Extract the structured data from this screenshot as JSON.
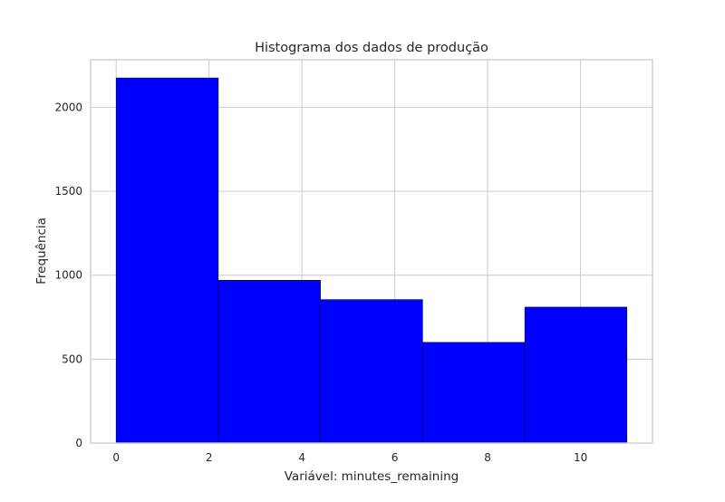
{
  "chart_data": {
    "type": "bar",
    "title": "Histograma dos dados de produção",
    "xlabel": "Variável: minutes_remaining",
    "ylabel": "Frequência",
    "bins": [
      {
        "start": 0.0,
        "end": 2.2,
        "count": 2175
      },
      {
        "start": 2.2,
        "end": 4.4,
        "count": 970
      },
      {
        "start": 4.4,
        "end": 6.6,
        "count": 855
      },
      {
        "start": 6.6,
        "end": 8.8,
        "count": 600
      },
      {
        "start": 8.8,
        "end": 11.0,
        "count": 810
      }
    ],
    "values": [
      2175,
      970,
      855,
      600,
      810
    ],
    "xlim": [
      -0.55,
      11.55
    ],
    "ylim": [
      0,
      2283
    ],
    "xticks": [
      0,
      2,
      4,
      6,
      8,
      10
    ],
    "yticks": [
      0,
      500,
      1000,
      1500,
      2000
    ],
    "grid": true,
    "bar_color": "#0000ff",
    "edge_color": "#000000",
    "grid_color": "#cccccc",
    "background": "#ffffff"
  }
}
